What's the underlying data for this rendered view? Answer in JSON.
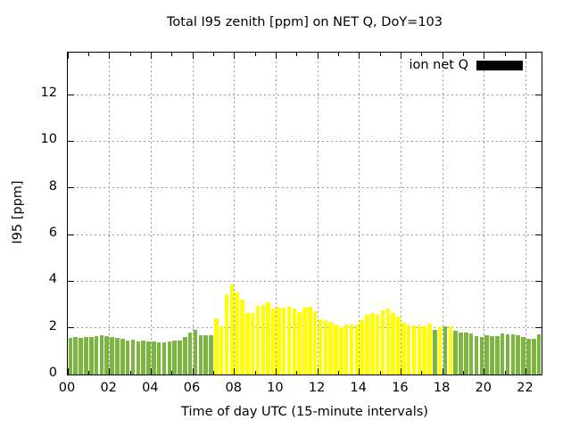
{
  "title": "Total I95 zenith [ppm] on NET Q, DoY=103",
  "chart_data": {
    "type": "bar",
    "title": "Total I95 zenith [ppm] on NET Q, DoY=103",
    "xlabel": "Time of day UTC (15-minute intervals)",
    "ylabel": "I95 [ppm]",
    "legend": {
      "label": "ion net Q",
      "swatch_color": "#000000",
      "position": "top-right-inside"
    },
    "grid": true,
    "xlim_hours": [
      0,
      22.75
    ],
    "ylim": [
      0,
      13.8
    ],
    "x_tick_hours": [
      0,
      2,
      4,
      6,
      8,
      10,
      12,
      14,
      16,
      18,
      20,
      22
    ],
    "x_tick_labels": [
      "00",
      "02",
      "04",
      "06",
      "08",
      "10",
      "12",
      "14",
      "16",
      "18",
      "20",
      "22"
    ],
    "x_minor_tick_hours": [
      1,
      3,
      5,
      7,
      9,
      11,
      13,
      15,
      17,
      19,
      21
    ],
    "y_ticks": [
      0,
      2,
      4,
      6,
      8,
      10,
      12
    ],
    "bar_interval_hours": 0.25,
    "colors": {
      "green": "#7ab640",
      "yellow": "#ffff00"
    },
    "bar_times": [
      "00:00",
      "00:15",
      "00:30",
      "00:45",
      "01:00",
      "01:15",
      "01:30",
      "01:45",
      "02:00",
      "02:15",
      "02:30",
      "02:45",
      "03:00",
      "03:15",
      "03:30",
      "03:45",
      "04:00",
      "04:15",
      "04:30",
      "04:45",
      "05:00",
      "05:15",
      "05:30",
      "05:45",
      "06:00",
      "06:15",
      "06:30",
      "06:45",
      "07:00",
      "07:15",
      "07:30",
      "07:45",
      "08:00",
      "08:15",
      "08:30",
      "08:45",
      "09:00",
      "09:15",
      "09:30",
      "09:45",
      "10:00",
      "10:15",
      "10:30",
      "10:45",
      "11:00",
      "11:15",
      "11:30",
      "11:45",
      "12:00",
      "12:15",
      "12:30",
      "12:45",
      "13:00",
      "13:15",
      "13:30",
      "13:45",
      "14:00",
      "14:15",
      "14:30",
      "14:45",
      "15:00",
      "15:15",
      "15:30",
      "15:45",
      "16:00",
      "16:15",
      "16:30",
      "16:45",
      "17:00",
      "17:15",
      "17:30",
      "17:45",
      "18:00",
      "18:15",
      "18:30",
      "18:45",
      "19:00",
      "19:15",
      "19:30",
      "19:45",
      "20:00",
      "20:15",
      "20:30",
      "20:45",
      "21:00",
      "21:15",
      "21:30",
      "21:45",
      "22:00",
      "22:15",
      "22:30"
    ],
    "values": [
      1.55,
      1.6,
      1.56,
      1.6,
      1.62,
      1.66,
      1.68,
      1.66,
      1.62,
      1.56,
      1.52,
      1.47,
      1.49,
      1.43,
      1.46,
      1.43,
      1.41,
      1.39,
      1.39,
      1.43,
      1.46,
      1.47,
      1.6,
      1.78,
      1.9,
      1.68,
      1.68,
      1.7,
      2.4,
      2.08,
      3.45,
      3.87,
      3.52,
      3.2,
      2.63,
      2.65,
      2.95,
      2.99,
      3.08,
      2.83,
      2.87,
      2.87,
      2.89,
      2.83,
      2.68,
      2.85,
      2.89,
      2.7,
      2.36,
      2.32,
      2.25,
      2.15,
      2.04,
      2.15,
      2.15,
      2.15,
      2.32,
      2.57,
      2.64,
      2.57,
      2.76,
      2.83,
      2.64,
      2.48,
      2.22,
      2.09,
      2.09,
      2.09,
      2.06,
      2.19,
      1.92,
      2.05,
      2.08,
      2.08,
      1.87,
      1.78,
      1.78,
      1.75,
      1.65,
      1.62,
      1.68,
      1.66,
      1.66,
      1.75,
      1.72,
      1.72,
      1.68,
      1.62,
      1.53,
      1.53,
      1.72
    ],
    "bar_colors": [
      "green",
      "green",
      "green",
      "green",
      "green",
      "green",
      "green",
      "green",
      "green",
      "green",
      "green",
      "green",
      "green",
      "green",
      "green",
      "green",
      "green",
      "green",
      "green",
      "green",
      "green",
      "green",
      "green",
      "green",
      "green",
      "green",
      "green",
      "green",
      "yellow",
      "yellow",
      "yellow",
      "yellow",
      "yellow",
      "yellow",
      "yellow",
      "yellow",
      "yellow",
      "yellow",
      "yellow",
      "yellow",
      "yellow",
      "yellow",
      "yellow",
      "yellow",
      "yellow",
      "yellow",
      "yellow",
      "yellow",
      "yellow",
      "yellow",
      "yellow",
      "yellow",
      "yellow",
      "yellow",
      "yellow",
      "yellow",
      "yellow",
      "yellow",
      "yellow",
      "yellow",
      "yellow",
      "yellow",
      "yellow",
      "yellow",
      "yellow",
      "yellow",
      "yellow",
      "yellow",
      "yellow",
      "yellow",
      "green",
      "yellow",
      "green",
      "yellow",
      "green",
      "green",
      "green",
      "green",
      "green",
      "green",
      "green",
      "green",
      "green",
      "green",
      "green",
      "green",
      "green",
      "green",
      "green",
      "green",
      "green"
    ]
  }
}
